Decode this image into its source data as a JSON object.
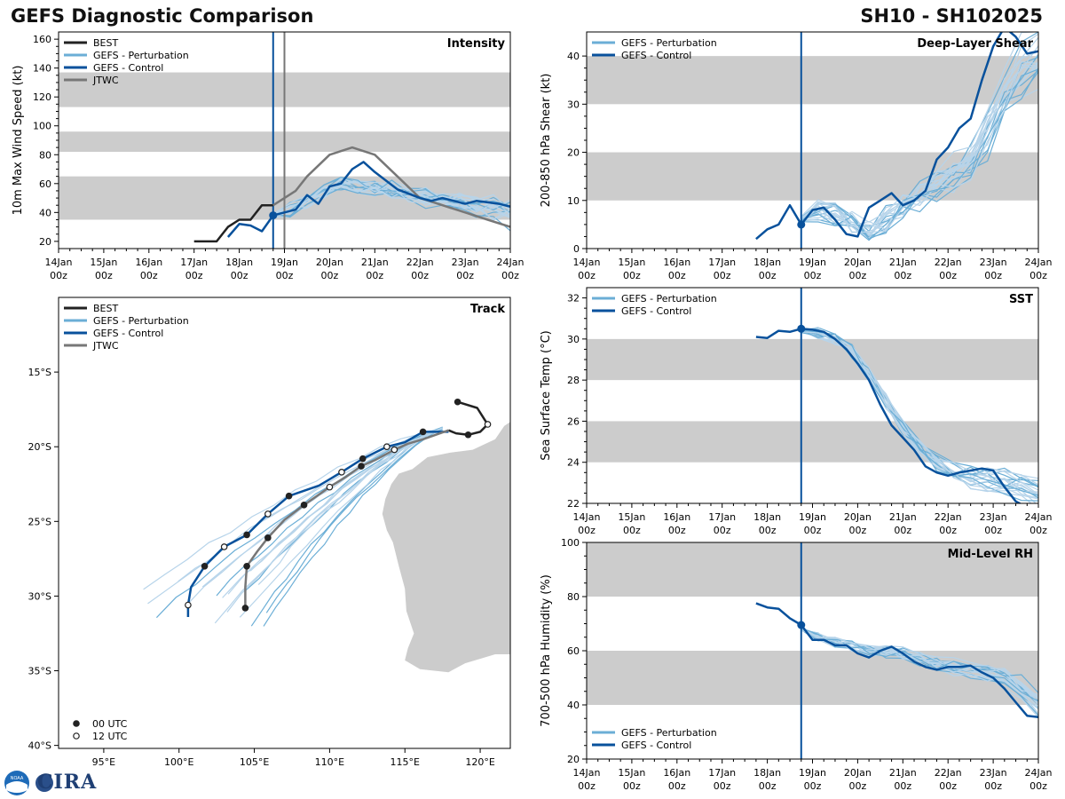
{
  "header": {
    "title_left": "GEFS Diagnostic Comparison",
    "title_right": "SH10 - SH102025"
  },
  "logo": {
    "text": "CIRA",
    "noaa_label": "NOAA"
  },
  "colors": {
    "best": "#222222",
    "perturbation": "#6baed6",
    "perturbation_light": "#b7d4ea",
    "control": "#08519c",
    "jtwc": "#777777",
    "band": "#cccccc",
    "land": "#cccccc"
  },
  "time_axis": {
    "ticks": [
      0,
      1,
      2,
      3,
      4,
      5,
      6,
      7,
      8,
      9,
      10
    ],
    "labels": [
      [
        "14Jan",
        "00z"
      ],
      [
        "15Jan",
        "00z"
      ],
      [
        "16Jan",
        "00z"
      ],
      [
        "17Jan",
        "00z"
      ],
      [
        "18Jan",
        "00z"
      ],
      [
        "19Jan",
        "00z"
      ],
      [
        "20Jan",
        "00z"
      ],
      [
        "21Jan",
        "00z"
      ],
      [
        "22Jan",
        "00z"
      ],
      [
        "23Jan",
        "00z"
      ],
      [
        "24Jan",
        "00z"
      ]
    ]
  },
  "chart_data": [
    {
      "id": "intensity",
      "type": "line",
      "title": "Intensity",
      "title_pos": "top-right",
      "ylabel": "10m Max Wind Speed (kt)",
      "xlim": [
        0,
        10
      ],
      "ylim": [
        15,
        165
      ],
      "yticks": [
        20,
        40,
        60,
        80,
        100,
        120,
        140,
        160
      ],
      "bands": [
        [
          35,
          65
        ],
        [
          82,
          96
        ],
        [
          113,
          137
        ]
      ],
      "vlines": [
        {
          "x": 4.75,
          "color": "control"
        },
        {
          "x": 5.0,
          "color": "jtwc"
        }
      ],
      "legend": [
        "BEST",
        "GEFS - Perturbation",
        "GEFS - Control",
        "JTWC"
      ],
      "legend_pos": "top-left",
      "series": [
        {
          "name": "BEST",
          "color": "best",
          "x": [
            3.0,
            3.5,
            3.75,
            4.0,
            4.25,
            4.5,
            4.75
          ],
          "y": [
            20,
            20,
            30,
            35,
            35,
            45,
            45
          ]
        },
        {
          "name": "JTWC",
          "color": "jtwc",
          "x": [
            4.75,
            5.0,
            5.25,
            5.5,
            6.0,
            6.5,
            7.0,
            7.5,
            8.0,
            8.5,
            9.0,
            9.5,
            10.0
          ],
          "y": [
            45,
            50,
            55,
            65,
            80,
            85,
            80,
            65,
            50,
            45,
            40,
            35,
            30
          ]
        },
        {
          "name": "GEFS - Control",
          "color": "control",
          "x": [
            3.75,
            4.0,
            4.25,
            4.5,
            4.75,
            5.0,
            5.25,
            5.5,
            5.75,
            6.0,
            6.25,
            6.5,
            6.75,
            7.0,
            7.25,
            7.5,
            7.75,
            8.0,
            8.25,
            8.5,
            8.75,
            9.0,
            9.25,
            9.5,
            9.75,
            10.0
          ],
          "y": [
            23,
            32,
            31,
            27,
            38,
            40,
            42,
            52,
            46,
            58,
            60,
            70,
            75,
            68,
            62,
            56,
            53,
            50,
            48,
            50,
            48,
            46,
            48,
            47,
            46,
            44
          ],
          "marker_index": 4
        }
      ],
      "ensemble": {
        "count": 20,
        "x_start": 4.75,
        "x_end": 10.0,
        "base": [
          38,
          42,
          48,
          55,
          60,
          58,
          57,
          55,
          52,
          50,
          48,
          46,
          44,
          42,
          40
        ],
        "spread": 10
      }
    },
    {
      "id": "shear",
      "type": "line",
      "title": "Deep-Layer Shear",
      "title_pos": "top-right",
      "ylabel": "200-850 hPa Shear (kt)",
      "xlim": [
        0,
        10
      ],
      "ylim": [
        0,
        45
      ],
      "yticks": [
        0,
        10,
        20,
        30,
        40
      ],
      "bands": [
        [
          10,
          20
        ],
        [
          30,
          40
        ]
      ],
      "vlines": [
        {
          "x": 4.75,
          "color": "control"
        }
      ],
      "legend": [
        "GEFS - Perturbation",
        "GEFS - Control"
      ],
      "legend_pos": "top-left",
      "series": [
        {
          "name": "GEFS - Control",
          "color": "control",
          "x": [
            3.75,
            4.0,
            4.25,
            4.5,
            4.75,
            5.0,
            5.25,
            5.5,
            5.75,
            6.0,
            6.25,
            6.5,
            6.75,
            7.0,
            7.25,
            7.5,
            7.75,
            8.0,
            8.25,
            8.5,
            8.75,
            9.0,
            9.25,
            9.5,
            9.75,
            10.0
          ],
          "y": [
            2,
            4,
            5,
            9,
            5,
            8,
            8.5,
            6,
            3,
            2.5,
            8.5,
            10,
            11.5,
            9,
            10,
            12,
            18.5,
            21,
            25,
            27,
            35,
            42,
            46,
            44,
            40.5,
            41
          ],
          "marker_index": 4
        }
      ],
      "ensemble": {
        "count": 20,
        "x_start": 4.75,
        "x_end": 10.0,
        "base": [
          6,
          8,
          7,
          5,
          4,
          6,
          9,
          11,
          13,
          15,
          18,
          25,
          32,
          37,
          40
        ],
        "spread": 5
      }
    },
    {
      "id": "sst",
      "type": "line",
      "title": "SST",
      "title_pos": "top-right",
      "ylabel": "Sea Surface Temp (°C)",
      "xlim": [
        0,
        10
      ],
      "ylim": [
        22,
        32.5
      ],
      "yticks": [
        22,
        24,
        26,
        28,
        30,
        32
      ],
      "bands": [
        [
          24,
          26
        ],
        [
          28,
          30
        ]
      ],
      "vlines": [
        {
          "x": 4.75,
          "color": "control"
        }
      ],
      "legend": [
        "GEFS - Perturbation",
        "GEFS - Control"
      ],
      "legend_pos": "top-left",
      "series": [
        {
          "name": "GEFS - Control",
          "color": "control",
          "x": [
            3.75,
            4.0,
            4.25,
            4.5,
            4.75,
            5.0,
            5.25,
            5.5,
            5.75,
            6.0,
            6.25,
            6.5,
            6.75,
            7.0,
            7.25,
            7.5,
            7.75,
            8.0,
            8.25,
            8.5,
            8.75,
            9.0,
            9.25,
            9.5,
            9.75,
            10.0
          ],
          "y": [
            30.1,
            30.05,
            30.4,
            30.35,
            30.5,
            30.45,
            30.35,
            30.0,
            29.5,
            28.8,
            28.0,
            26.8,
            25.8,
            25.2,
            24.6,
            23.8,
            23.5,
            23.35,
            23.5,
            23.6,
            23.7,
            23.6,
            22.8,
            22.1,
            21.8,
            21.7
          ],
          "marker_index": 4
        }
      ],
      "ensemble": {
        "count": 20,
        "x_start": 4.75,
        "x_end": 10.0,
        "base": [
          30.4,
          30.3,
          30.0,
          29.4,
          28.3,
          27.0,
          25.8,
          24.8,
          24.0,
          23.6,
          23.3,
          23.2,
          23.0,
          22.8,
          22.5
        ],
        "spread": 0.6
      }
    },
    {
      "id": "rh",
      "type": "line",
      "title": "Mid-Level RH",
      "title_pos": "top-right",
      "ylabel": "700-500 hPa Humidity (%)",
      "xlim": [
        0,
        10
      ],
      "ylim": [
        20,
        100
      ],
      "yticks": [
        20,
        40,
        60,
        80,
        100
      ],
      "bands": [
        [
          40,
          60
        ],
        [
          80,
          100
        ]
      ],
      "vlines": [
        {
          "x": 4.75,
          "color": "control"
        }
      ],
      "legend": [
        "GEFS - Perturbation",
        "GEFS - Control"
      ],
      "legend_pos": "bottom-left",
      "series": [
        {
          "name": "GEFS - Control",
          "color": "control",
          "x": [
            3.75,
            4.0,
            4.25,
            4.5,
            4.75,
            5.0,
            5.25,
            5.5,
            5.75,
            6.0,
            6.25,
            6.5,
            6.75,
            7.0,
            7.25,
            7.5,
            7.75,
            8.0,
            8.25,
            8.5,
            8.75,
            9.0,
            9.25,
            9.5,
            9.75,
            10.0
          ],
          "y": [
            77.5,
            76,
            75.5,
            72,
            69.5,
            64,
            64,
            62,
            62,
            59,
            57.5,
            60,
            61.5,
            59,
            56,
            54,
            53,
            54,
            54,
            54.5,
            52,
            50,
            46,
            41,
            36,
            35.5
          ],
          "marker_index": 4
        }
      ],
      "ensemble": {
        "count": 20,
        "x_start": 4.75,
        "x_end": 10.0,
        "base": [
          68,
          65,
          63,
          62,
          60,
          60,
          59,
          57,
          55,
          54,
          53,
          52,
          50,
          46,
          40
        ],
        "spread": 4
      }
    },
    {
      "id": "track",
      "type": "scatter",
      "title": "Track",
      "title_pos": "top-right",
      "xlim": [
        92.0,
        122.0
      ],
      "ylim": [
        -40.2,
        -10.0
      ],
      "xticks": [
        95,
        100,
        105,
        110,
        115,
        120
      ],
      "xtick_labels": [
        "95°E",
        "100°E",
        "105°E",
        "110°E",
        "115°E",
        "120°E"
      ],
      "yticks": [
        -15,
        -20,
        -25,
        -30,
        -35,
        -40
      ],
      "ytick_labels": [
        "15°S",
        "20°S",
        "25°S",
        "30°S",
        "35°S",
        "40°S"
      ],
      "legend": [
        "BEST",
        "GEFS - Perturbation",
        "GEFS - Control",
        "JTWC"
      ],
      "legend_pos": "top-left",
      "marker_legend": [
        "00 UTC",
        "12 UTC"
      ],
      "marker_legend_pos": "bottom-left",
      "series": [
        {
          "name": "BEST",
          "color": "best",
          "lon": [
            118.5,
            119.8,
            120.3,
            120.5,
            120.0,
            119.2,
            118.4,
            117.9
          ],
          "lat": [
            -17.0,
            -17.4,
            -18.2,
            -18.5,
            -19.0,
            -19.2,
            -19.1,
            -18.9
          ],
          "marker_00": [
            0,
            5
          ],
          "marker_12": [
            3
          ]
        },
        {
          "name": "GEFS - Control",
          "color": "control",
          "lon": [
            117.9,
            117.0,
            116.2,
            115.0,
            113.8,
            112.2,
            110.8,
            109.3,
            107.3,
            105.9,
            104.5,
            103.0,
            101.7,
            100.8,
            100.6,
            100.6
          ],
          "lat": [
            -19.0,
            -19.0,
            -19.0,
            -19.7,
            -20.0,
            -20.8,
            -21.7,
            -22.6,
            -23.3,
            -24.5,
            -25.9,
            -26.7,
            -28.0,
            -29.4,
            -30.6,
            -31.4
          ],
          "marker_00": [
            2,
            5,
            8,
            10,
            12
          ],
          "marker_12": [
            4,
            6,
            9,
            11,
            14
          ]
        },
        {
          "name": "JTWC",
          "color": "jtwc",
          "lon": [
            117.9,
            116.2,
            115.2,
            114.3,
            113.0,
            112.1,
            111.1,
            110.0,
            108.3,
            107.0,
            105.9,
            105.2,
            104.5,
            104.4,
            104.4
          ],
          "lat": [
            -18.9,
            -19.5,
            -19.8,
            -20.2,
            -20.9,
            -21.3,
            -22.0,
            -22.7,
            -23.9,
            -24.9,
            -26.1,
            -27.0,
            -28.0,
            -29.4,
            -30.8
          ],
          "marker_00": [
            5,
            8,
            10,
            12,
            14
          ],
          "marker_12": [
            3,
            7
          ]
        }
      ],
      "ensemble": {
        "count": 18,
        "lon_start": 117.5,
        "lat_start": -18.8
      }
    }
  ]
}
